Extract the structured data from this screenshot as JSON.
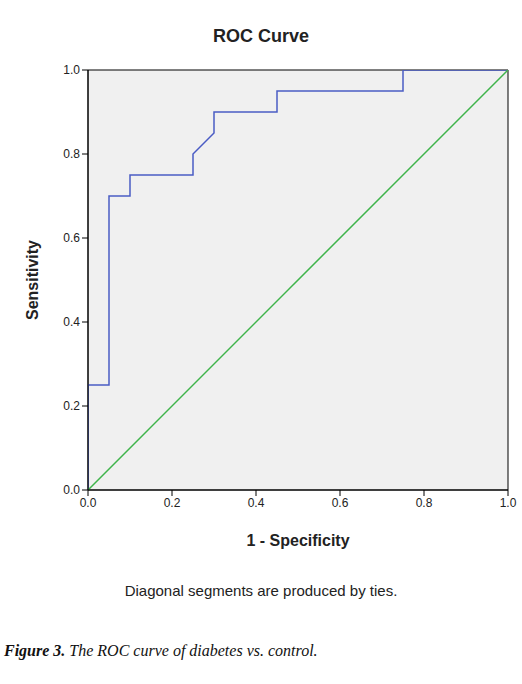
{
  "chart_data": {
    "type": "line",
    "title": "ROC Curve",
    "x_label": "1 - Specificity",
    "y_label": "Sensitivity",
    "xlim": [
      0,
      1
    ],
    "ylim": [
      0,
      1
    ],
    "xticks": [
      {
        "value": 0,
        "label": "0.0"
      },
      {
        "value": 0.2,
        "label": "0.2"
      },
      {
        "value": 0.4,
        "label": "0.4"
      },
      {
        "value": 0.6,
        "label": "0.6"
      },
      {
        "value": 0.8,
        "label": "0.8"
      },
      {
        "value": 1,
        "label": "1.0"
      }
    ],
    "yticks": [
      {
        "value": 0,
        "label": "0.0"
      },
      {
        "value": 0.2,
        "label": "0.2"
      },
      {
        "value": 0.4,
        "label": "0.4"
      },
      {
        "value": 0.6,
        "label": "0.6"
      },
      {
        "value": 0.8,
        "label": "0.8"
      },
      {
        "value": 1,
        "label": "1.0"
      }
    ],
    "grid": false,
    "series": [
      {
        "color": "#4a5cc4",
        "x": [
          0,
          0,
          0.05,
          0.05,
          0.1,
          0.1,
          0.25,
          0.25,
          0.3,
          0.3,
          0.45,
          0.45,
          0.75,
          0.75,
          1
        ],
        "values": [
          0,
          0.25,
          0.25,
          0.7,
          0.7,
          0.75,
          0.75,
          0.8,
          0.85,
          0.9,
          0.9,
          0.95,
          0.95,
          1,
          1
        ]
      },
      {
        "color": "#3fb44b",
        "x": [
          0,
          1
        ],
        "values": [
          0,
          1
        ]
      }
    ],
    "annotations": [
      "Diagonal segments are produced by ties."
    ],
    "caption": "Figure 3. The ROC curve of diabetes vs. control."
  }
}
